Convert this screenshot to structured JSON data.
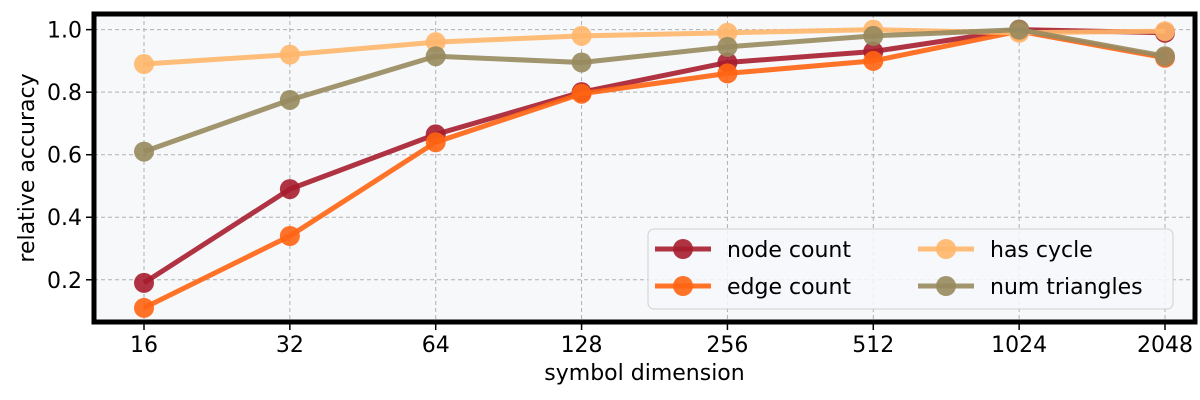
{
  "chart_data": {
    "type": "line",
    "xlabel": "symbol dimension",
    "ylabel": "relative accuracy",
    "x": [
      16,
      32,
      64,
      128,
      256,
      512,
      1024,
      2048
    ],
    "x_tick_labels": [
      "16",
      "32",
      "64",
      "128",
      "256",
      "512",
      "1024",
      "2048"
    ],
    "x_scale": "log2",
    "ylim": [
      0.065,
      1.05
    ],
    "y_ticks": [
      0.2,
      0.4,
      0.6,
      0.8,
      1.0
    ],
    "y_tick_labels": [
      "0.2",
      "0.4",
      "0.6",
      "0.8",
      "1.0"
    ],
    "grid": true,
    "legend_position": "lower-right",
    "legend_columns": 2,
    "plot_background": "#f7f8fa",
    "series": [
      {
        "name": "node count",
        "color": "#a61d2e",
        "values": [
          0.19,
          0.49,
          0.665,
          0.8,
          0.895,
          0.93,
          1.0,
          0.99
        ]
      },
      {
        "name": "edge count",
        "color": "#ff6412",
        "values": [
          0.11,
          0.34,
          0.64,
          0.795,
          0.86,
          0.9,
          0.995,
          0.91
        ]
      },
      {
        "name": "has cycle",
        "color": "#ffb66b",
        "values": [
          0.89,
          0.92,
          0.96,
          0.98,
          0.99,
          1.0,
          0.99,
          0.995
        ]
      },
      {
        "name": "num triangles",
        "color": "#978a5e",
        "values": [
          0.61,
          0.775,
          0.915,
          0.895,
          0.945,
          0.98,
          1.0,
          0.915
        ]
      }
    ]
  }
}
